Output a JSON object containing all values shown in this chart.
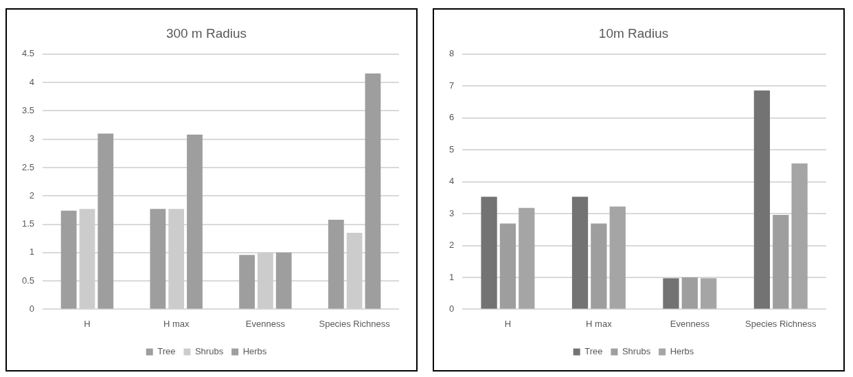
{
  "chart_data": [
    {
      "type": "bar",
      "title": "300 m Radius",
      "categories": [
        "H",
        "H max",
        "Evenness",
        "Species Richness"
      ],
      "series": [
        {
          "name": "Tree",
          "color": "#9e9e9e",
          "values": [
            1.74,
            1.77,
            0.96,
            1.58
          ]
        },
        {
          "name": "Shrubs",
          "color": "#cccccc",
          "values": [
            1.77,
            1.77,
            1.0,
            1.35
          ]
        },
        {
          "name": "Herbs",
          "color": "#9e9e9e",
          "values": [
            3.1,
            3.08,
            1.0,
            4.16
          ]
        }
      ],
      "ylim": [
        0,
        4.5
      ],
      "yticks": [
        0,
        0.5,
        1,
        1.5,
        2,
        2.5,
        3,
        3.5,
        4,
        4.5
      ],
      "grid": "y",
      "legend": "bottom"
    },
    {
      "type": "bar",
      "title": "10m Radius",
      "categories": [
        "H",
        "H max",
        "Evenness",
        "Species Richness"
      ],
      "series": [
        {
          "name": "Tree",
          "color": "#737373",
          "values": [
            3.53,
            3.53,
            0.97,
            6.86
          ]
        },
        {
          "name": "Shrubs",
          "color": "#9e9e9e",
          "values": [
            2.69,
            2.69,
            1.0,
            2.96
          ]
        },
        {
          "name": "Herbs",
          "color": "#a5a5a5",
          "values": [
            3.18,
            3.22,
            0.97,
            4.57
          ]
        }
      ],
      "ylim": [
        0,
        8
      ],
      "yticks": [
        0,
        1,
        2,
        3,
        4,
        5,
        6,
        7,
        8
      ],
      "grid": "y",
      "legend": "bottom"
    }
  ]
}
